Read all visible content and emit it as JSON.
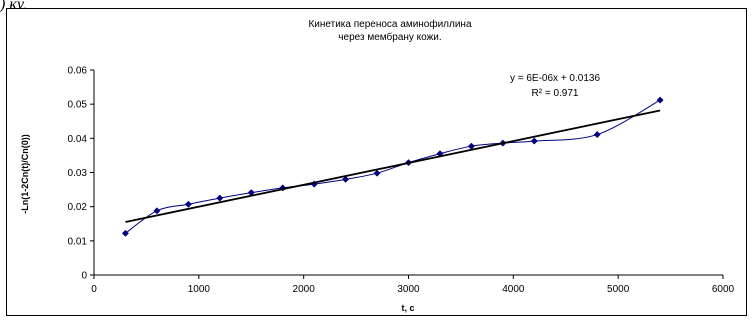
{
  "page": {
    "top_fragment": ") ку,"
  },
  "chart_data": {
    "type": "scatter",
    "title_lines": [
      "Кинетика переноса аминофиллина",
      "через  мембрану кожи."
    ],
    "xlabel": "t, c",
    "ylabel": "-Ln(1-2Cn(t)/Cn(0))",
    "xlim": [
      0,
      6000
    ],
    "ylim": [
      0,
      0.06
    ],
    "xticks": [
      0,
      1000,
      2000,
      3000,
      4000,
      5000,
      6000
    ],
    "yticks": [
      "0",
      "0.01",
      "0.02",
      "0.03",
      "0.04",
      "0.05",
      "0.06"
    ],
    "grid": false,
    "series": [
      {
        "x": [
          300,
          600,
          900,
          1200,
          1500,
          1800,
          2100,
          2400,
          2700,
          3000,
          3300,
          3600,
          3900,
          4200,
          4800,
          5400
        ],
        "y": [
          0.0122,
          0.0188,
          0.0207,
          0.0225,
          0.0241,
          0.0255,
          0.0266,
          0.028,
          0.0298,
          0.0329,
          0.0355,
          0.0377,
          0.0386,
          0.0392,
          0.0411,
          0.0512
        ],
        "marker": "diamond",
        "color": "#000080",
        "smooth_line": true
      }
    ],
    "trendline": {
      "type": "linear",
      "x_range": [
        300,
        5400
      ],
      "slope": 6.4e-06,
      "intercept": 0.0136,
      "color": "#000000",
      "equation_lines": [
        "y = 6E-06x + 0.0136",
        "R² = 0.971"
      ]
    }
  }
}
